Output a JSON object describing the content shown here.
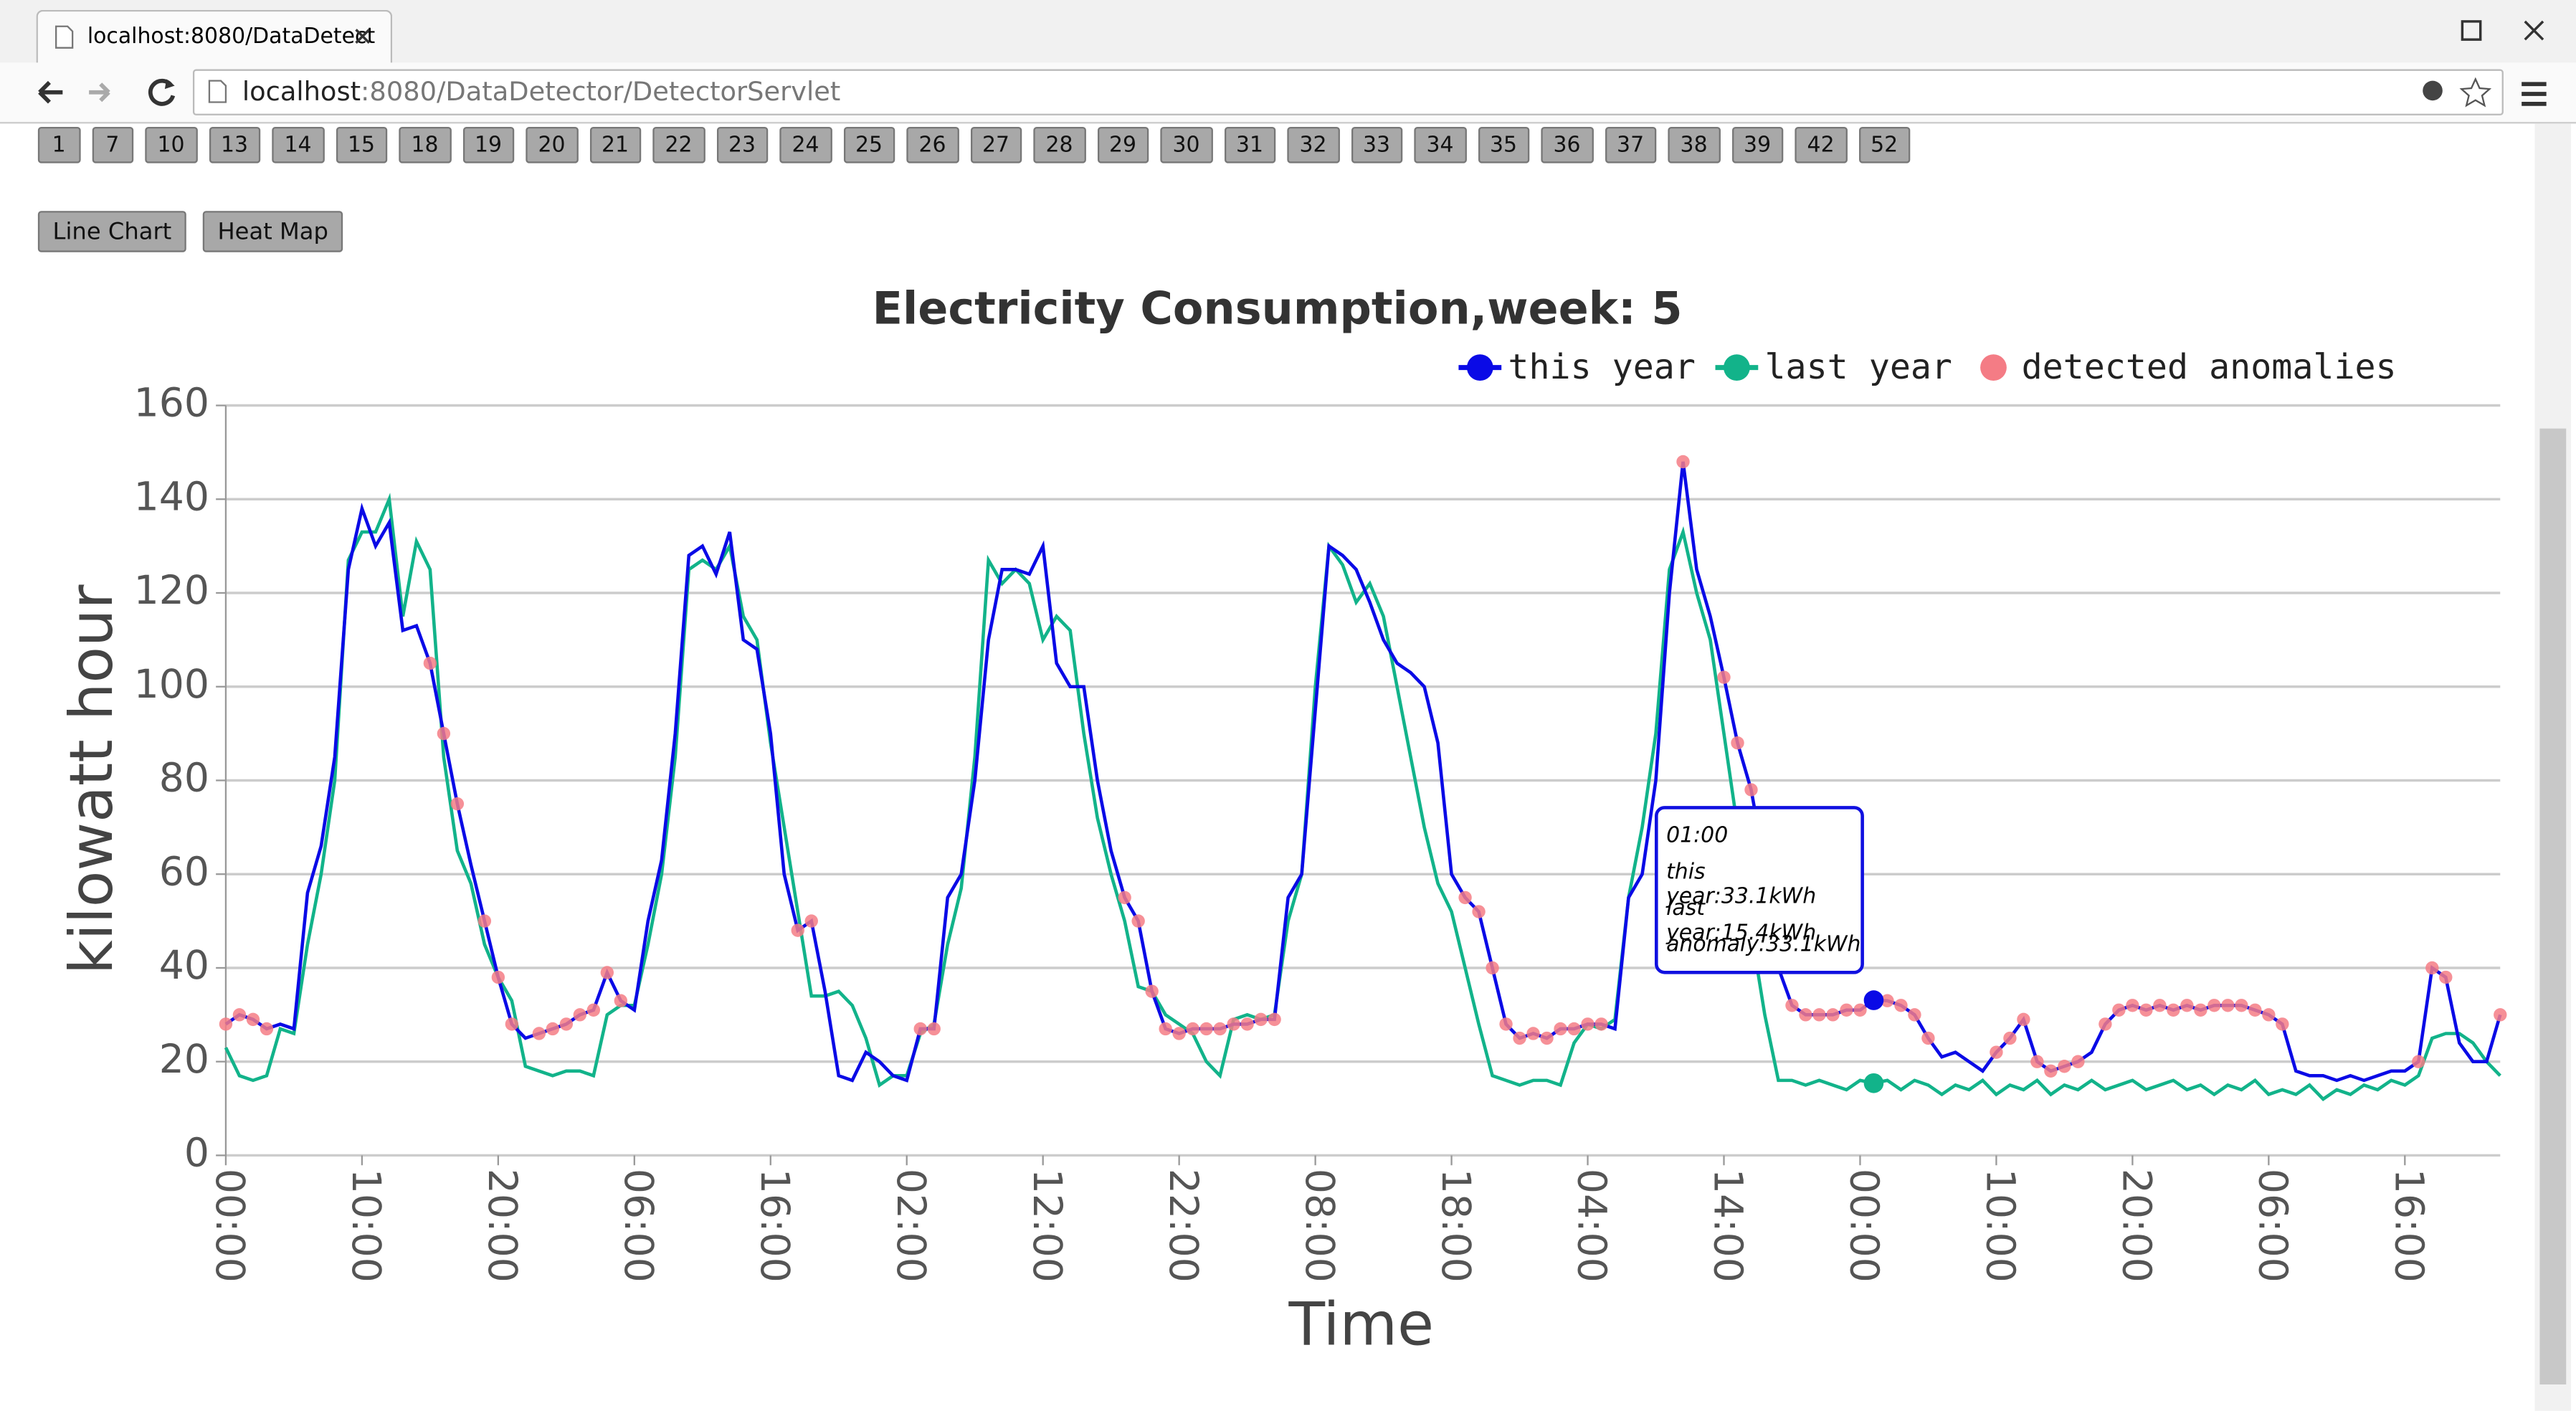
{
  "browser": {
    "tab_title": "localhost:8080/DataDetect",
    "url_host": "localhost",
    "url_rest": ":8080/DataDetector/DetectorServlet"
  },
  "week_buttons": [
    "1",
    "7",
    "10",
    "13",
    "14",
    "15",
    "18",
    "19",
    "20",
    "21",
    "22",
    "23",
    "24",
    "25",
    "26",
    "27",
    "28",
    "29",
    "30",
    "31",
    "32",
    "33",
    "34",
    "35",
    "36",
    "37",
    "38",
    "39",
    "42",
    "52"
  ],
  "view_buttons": [
    "Line Chart",
    "Heat Map"
  ],
  "chart_data": {
    "type": "line",
    "title": "Electricity Consumption,week: 5",
    "x_label": "Time",
    "y_label": "kilowatt hour",
    "x": [
      0,
      1,
      2,
      3,
      4,
      5,
      6,
      7,
      8,
      9,
      10,
      11,
      12,
      13,
      14,
      15,
      16,
      17,
      18,
      19,
      20,
      21,
      22,
      23,
      24,
      25,
      26,
      27,
      28,
      29,
      30,
      31,
      32,
      33,
      34,
      35,
      36,
      37,
      38,
      39,
      40,
      41,
      42,
      43,
      44,
      45,
      46,
      47,
      48,
      49,
      50,
      51,
      52,
      53,
      54,
      55,
      56,
      57,
      58,
      59,
      60,
      61,
      62,
      63,
      64,
      65,
      66,
      67,
      68,
      69,
      70,
      71,
      72,
      73,
      74,
      75,
      76,
      77,
      78,
      79,
      80,
      81,
      82,
      83,
      84,
      85,
      86,
      87,
      88,
      89,
      90,
      91,
      92,
      93,
      94,
      95,
      96,
      97,
      98,
      99,
      100,
      101,
      102,
      103,
      104,
      105,
      106,
      107,
      108,
      109,
      110,
      111,
      112,
      113,
      114,
      115,
      116,
      117,
      118,
      119,
      120,
      121,
      122,
      123,
      124,
      125,
      126,
      127,
      128,
      129,
      130,
      131,
      132,
      133,
      134,
      135,
      136,
      137,
      138,
      139,
      140,
      141,
      142,
      143,
      144,
      145,
      146,
      147,
      148,
      149,
      150,
      151,
      152,
      153,
      154,
      155,
      156,
      157,
      158,
      159,
      160,
      161,
      162,
      163,
      164,
      165,
      166,
      167
    ],
    "xlim": [
      0,
      167
    ],
    "xticks": [
      {
        "value": 0,
        "label": "00:00"
      },
      {
        "value": 10,
        "label": "10:00"
      },
      {
        "value": 20,
        "label": "20:00"
      },
      {
        "value": 30,
        "label": "06:00"
      },
      {
        "value": 40,
        "label": "16:00"
      },
      {
        "value": 50,
        "label": "02:00"
      },
      {
        "value": 60,
        "label": "12:00"
      },
      {
        "value": 70,
        "label": "22:00"
      },
      {
        "value": 80,
        "label": "08:00"
      },
      {
        "value": 90,
        "label": "18:00"
      },
      {
        "value": 100,
        "label": "04:00"
      },
      {
        "value": 110,
        "label": "14:00"
      },
      {
        "value": 120,
        "label": "00:00"
      },
      {
        "value": 130,
        "label": "10:00"
      },
      {
        "value": 140,
        "label": "20:00"
      },
      {
        "value": 150,
        "label": "06:00"
      },
      {
        "value": 160,
        "label": "16:00"
      }
    ],
    "ylim": [
      0,
      160
    ],
    "yticks": [
      0,
      20,
      40,
      60,
      80,
      100,
      120,
      140,
      160
    ],
    "grid": true,
    "series": [
      {
        "name": "this year",
        "color": "#0a0ae6",
        "style": "line",
        "values": [
          28,
          30,
          29,
          27,
          28,
          27,
          56,
          66,
          85,
          125,
          138,
          130,
          135,
          112,
          113,
          105,
          90,
          75,
          62,
          50,
          38,
          28,
          25,
          26,
          27,
          28,
          30,
          31,
          39,
          33,
          31,
          50,
          63,
          90,
          128,
          130,
          124,
          133,
          110,
          108,
          90,
          60,
          48,
          50,
          35,
          17,
          16,
          22,
          20,
          17,
          16,
          27,
          27,
          55,
          60,
          80,
          110,
          125,
          125,
          124,
          130,
          105,
          100,
          100,
          80,
          65,
          55,
          50,
          35,
          27,
          26,
          27,
          27,
          27,
          28,
          28,
          29,
          29,
          55,
          60,
          95,
          130,
          128,
          125,
          118,
          110,
          105,
          103,
          100,
          88,
          60,
          55,
          52,
          40,
          28,
          25,
          26,
          25,
          27,
          27,
          28,
          28,
          27,
          55,
          60,
          80,
          120,
          148,
          125,
          115,
          102,
          88,
          78,
          62,
          40,
          32,
          30,
          30,
          30,
          31,
          31,
          33.1,
          33,
          32,
          30,
          25,
          21,
          22,
          20,
          18,
          22,
          25,
          29,
          20,
          18,
          19,
          20,
          22,
          28,
          31,
          32,
          31,
          32,
          31,
          32,
          31,
          32,
          32,
          32,
          31,
          30,
          28,
          18,
          17,
          17,
          16,
          17,
          16,
          17,
          18,
          18,
          20,
          40,
          38,
          24,
          20,
          20,
          30
        ]
      },
      {
        "name": "last year",
        "color": "#12b38a",
        "style": "line",
        "values": [
          23,
          17,
          16,
          17,
          27,
          26,
          45,
          60,
          80,
          127,
          133,
          133,
          140,
          115,
          131,
          125,
          85,
          65,
          58,
          45,
          38,
          33,
          19,
          18,
          17,
          18,
          18,
          17,
          30,
          32,
          32,
          45,
          60,
          85,
          125,
          127,
          125,
          130,
          115,
          110,
          88,
          70,
          52,
          34,
          34,
          35,
          32,
          25,
          15,
          17,
          17,
          26,
          28,
          45,
          57,
          85,
          127,
          122,
          125,
          122,
          110,
          115,
          112,
          90,
          72,
          60,
          50,
          36,
          35,
          30,
          28,
          26,
          20,
          17,
          29,
          30,
          29,
          30,
          50,
          60,
          100,
          130,
          126,
          118,
          122,
          115,
          100,
          85,
          70,
          58,
          52,
          40,
          28,
          17,
          16,
          15,
          16,
          16,
          15,
          24,
          28,
          27,
          29,
          55,
          70,
          90,
          125,
          133,
          120,
          110,
          90,
          70,
          48,
          30,
          16,
          16,
          15,
          16,
          15,
          14,
          16,
          15.4,
          16,
          14,
          16,
          15,
          13,
          15,
          14,
          16,
          13,
          15,
          14,
          16,
          13,
          15,
          14,
          16,
          14,
          15,
          16,
          14,
          15,
          16,
          14,
          15,
          13,
          15,
          14,
          16,
          13,
          14,
          13,
          15,
          12,
          14,
          13,
          15,
          14,
          16,
          15,
          17,
          25,
          26,
          26,
          24,
          20,
          17
        ]
      },
      {
        "name": "detected anomalies",
        "color": "#f47c85",
        "style": "scatter",
        "values": [
          28,
          30,
          29,
          27,
          null,
          null,
          null,
          null,
          null,
          null,
          null,
          null,
          null,
          null,
          null,
          105,
          90,
          75,
          null,
          50,
          38,
          28,
          null,
          26,
          27,
          28,
          30,
          31,
          39,
          33,
          null,
          null,
          null,
          null,
          null,
          null,
          null,
          null,
          null,
          null,
          null,
          null,
          48,
          50,
          null,
          null,
          null,
          null,
          null,
          null,
          null,
          27,
          27,
          null,
          null,
          null,
          null,
          null,
          null,
          null,
          null,
          null,
          null,
          null,
          null,
          null,
          55,
          50,
          35,
          27,
          26,
          27,
          27,
          27,
          28,
          28,
          29,
          29,
          null,
          null,
          null,
          null,
          null,
          null,
          null,
          null,
          null,
          null,
          null,
          null,
          null,
          55,
          52,
          40,
          28,
          25,
          26,
          25,
          27,
          27,
          28,
          28,
          null,
          null,
          null,
          null,
          null,
          148,
          null,
          null,
          102,
          88,
          78,
          null,
          null,
          32,
          30,
          30,
          30,
          31,
          31,
          33.1,
          33,
          32,
          30,
          25,
          null,
          null,
          null,
          null,
          22,
          25,
          29,
          20,
          18,
          19,
          20,
          null,
          28,
          31,
          32,
          31,
          32,
          31,
          32,
          31,
          32,
          32,
          32,
          31,
          30,
          28,
          null,
          null,
          null,
          null,
          null,
          null,
          null,
          null,
          null,
          20,
          40,
          38,
          null,
          null,
          null,
          30
        ]
      }
    ]
  },
  "tooltip": {
    "time": "01:00",
    "lines": [
      "this year:33.1kWh",
      "last year:15.4kWh",
      "anomaly:33.1kWh"
    ]
  }
}
